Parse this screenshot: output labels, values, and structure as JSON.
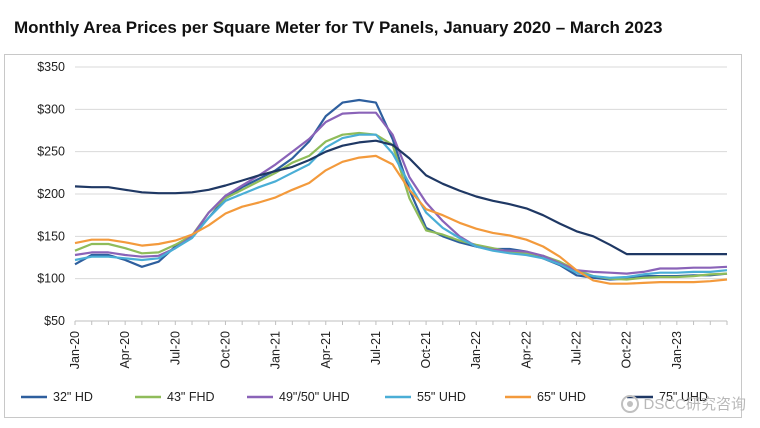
{
  "chart_data": {
    "type": "line",
    "title": "Monthly Area Prices per Square Meter for TV Panels, January 2020 – March 2023",
    "xlabel": "",
    "ylabel": "",
    "ylim": [
      50,
      350
    ],
    "y_ticks": [
      "$350",
      "$300",
      "$250",
      "$200",
      "$150",
      "$100",
      "$50"
    ],
    "y_tick_values": [
      350,
      300,
      250,
      200,
      150,
      100,
      50
    ],
    "x_start": "2020-01",
    "x_labels": [
      "Jan-20",
      "Apr-20",
      "Jul-20",
      "Oct-20",
      "Jan-21",
      "Apr-21",
      "Jul-21",
      "Oct-21",
      "Jan-22",
      "Apr-22",
      "Jul-22",
      "Oct-22",
      "Jan-23"
    ],
    "x_label_index": [
      0,
      3,
      6,
      9,
      12,
      15,
      18,
      21,
      24,
      27,
      30,
      33,
      36
    ],
    "grid": "horizontal",
    "legend_position": "bottom",
    "series": [
      {
        "name": "32\" HD",
        "color": "#2e5f9e",
        "values": [
          117,
          128,
          128,
          122,
          114,
          120,
          138,
          150,
          172,
          195,
          208,
          218,
          228,
          242,
          262,
          292,
          308,
          311,
          308,
          265,
          205,
          160,
          150,
          143,
          138,
          135,
          135,
          132,
          124,
          116,
          104,
          101,
          99,
          100,
          103,
          103,
          103,
          104,
          104,
          106
        ]
      },
      {
        "name": "43\" FHD",
        "color": "#8fbc5a",
        "values": [
          133,
          141,
          141,
          136,
          130,
          131,
          140,
          151,
          178,
          195,
          205,
          215,
          225,
          237,
          245,
          262,
          270,
          272,
          270,
          258,
          195,
          157,
          152,
          145,
          140,
          136,
          132,
          130,
          127,
          120,
          110,
          103,
          100,
          99,
          101,
          102,
          102,
          103,
          105,
          106
        ]
      },
      {
        "name": "49\"/50\" UHD",
        "color": "#8a63b8",
        "values": [
          128,
          131,
          131,
          128,
          126,
          127,
          136,
          150,
          178,
          198,
          210,
          222,
          235,
          250,
          265,
          285,
          295,
          296,
          296,
          270,
          220,
          190,
          168,
          150,
          138,
          134,
          133,
          132,
          127,
          118,
          110,
          108,
          107,
          106,
          108,
          112,
          112,
          113,
          113,
          114
        ]
      },
      {
        "name": "55\" UHD",
        "color": "#4aaed6",
        "values": [
          122,
          126,
          126,
          124,
          122,
          124,
          136,
          148,
          172,
          192,
          200,
          208,
          215,
          225,
          235,
          255,
          266,
          270,
          270,
          248,
          212,
          178,
          160,
          148,
          138,
          133,
          130,
          128,
          124,
          117,
          107,
          103,
          101,
          102,
          105,
          107,
          107,
          108,
          108,
          110
        ]
      },
      {
        "name": "65\" UHD",
        "color": "#f39a3c",
        "values": [
          142,
          146,
          146,
          143,
          139,
          141,
          145,
          152,
          163,
          177,
          185,
          190,
          196,
          205,
          213,
          228,
          238,
          243,
          245,
          235,
          205,
          182,
          175,
          166,
          159,
          154,
          151,
          146,
          138,
          126,
          110,
          98,
          94,
          94,
          95,
          96,
          96,
          96,
          97,
          99
        ]
      },
      {
        "name": "75\" UHD",
        "color": "#1f3864",
        "values": [
          209,
          208,
          208,
          205,
          202,
          201,
          201,
          202,
          205,
          210,
          216,
          222,
          227,
          232,
          240,
          250,
          257,
          261,
          263,
          258,
          242,
          222,
          212,
          204,
          197,
          192,
          188,
          183,
          175,
          165,
          156,
          150,
          140,
          129,
          129,
          129,
          129,
          129,
          129,
          129
        ]
      }
    ]
  },
  "watermark": {
    "text": "DSCC研究咨询",
    "icon": "wechat-icon"
  }
}
